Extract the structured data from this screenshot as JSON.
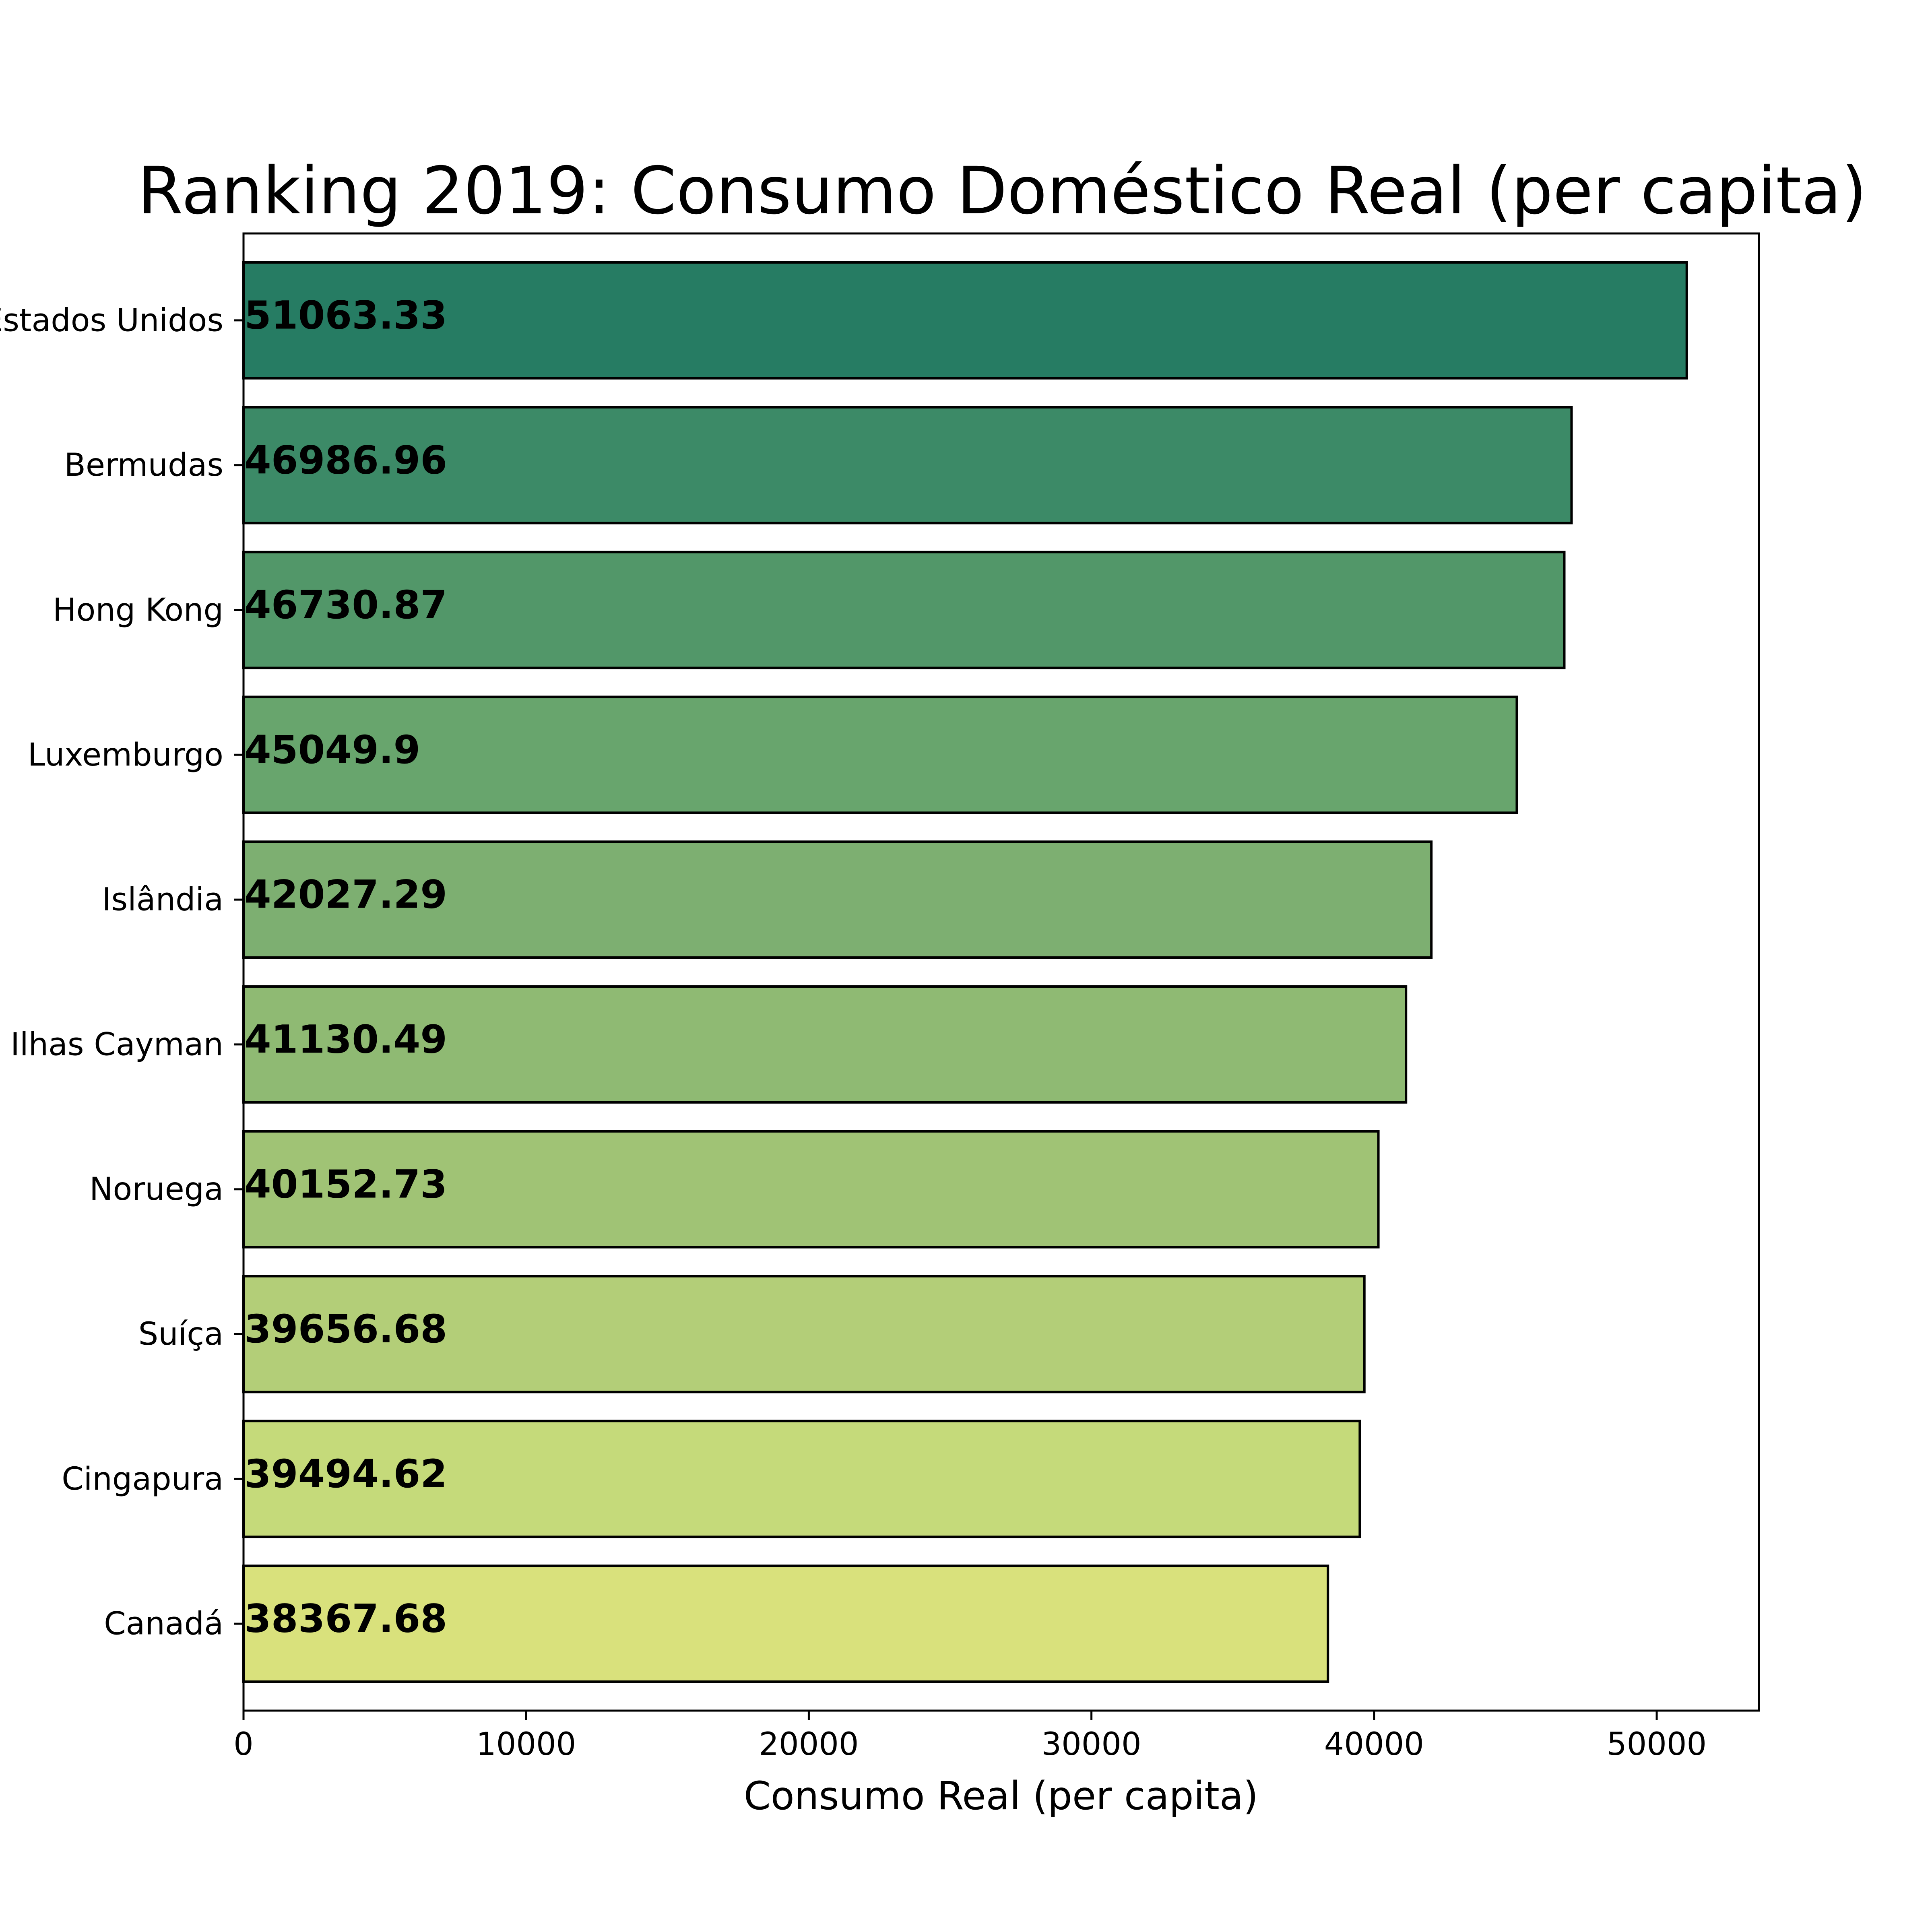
{
  "chart_data": {
    "type": "bar",
    "orientation": "horizontal",
    "title": "Ranking 2019: Consumo Doméstico Real (per capita)",
    "xlabel": "Consumo Real (per capita)",
    "ylabel": "",
    "xlim": [
      0,
      53616.5
    ],
    "x_ticks": [
      0,
      10000,
      20000,
      30000,
      40000,
      50000
    ],
    "x_tick_labels": [
      "0",
      "10000",
      "20000",
      "30000",
      "40000",
      "50000"
    ],
    "grid": false,
    "legend": "none",
    "categories": [
      "Estados Unidos",
      "Bermudas",
      "Hong Kong",
      "Luxemburgo",
      "Islândia",
      "Ilhas Cayman",
      "Noruega",
      "Suíça",
      "Cingapura",
      "Canadá"
    ],
    "values": [
      51063.33,
      46986.96,
      46730.87,
      45049.9,
      42027.29,
      41130.49,
      40152.73,
      39656.68,
      39494.62,
      38367.68
    ],
    "data_labels": [
      "51063.33",
      "46986.96",
      "46730.87",
      "45049.9",
      "42027.29",
      "41130.49",
      "40152.73",
      "39656.68",
      "39494.62",
      "38367.68"
    ],
    "colors": [
      "#267c63",
      "#3c8a67",
      "#529769",
      "#68a56d",
      "#7daf71",
      "#8fba73",
      "#a0c375",
      "#b3ce78",
      "#c5da7a",
      "#d9e17c"
    ],
    "bar_edge_color": "#000000"
  }
}
